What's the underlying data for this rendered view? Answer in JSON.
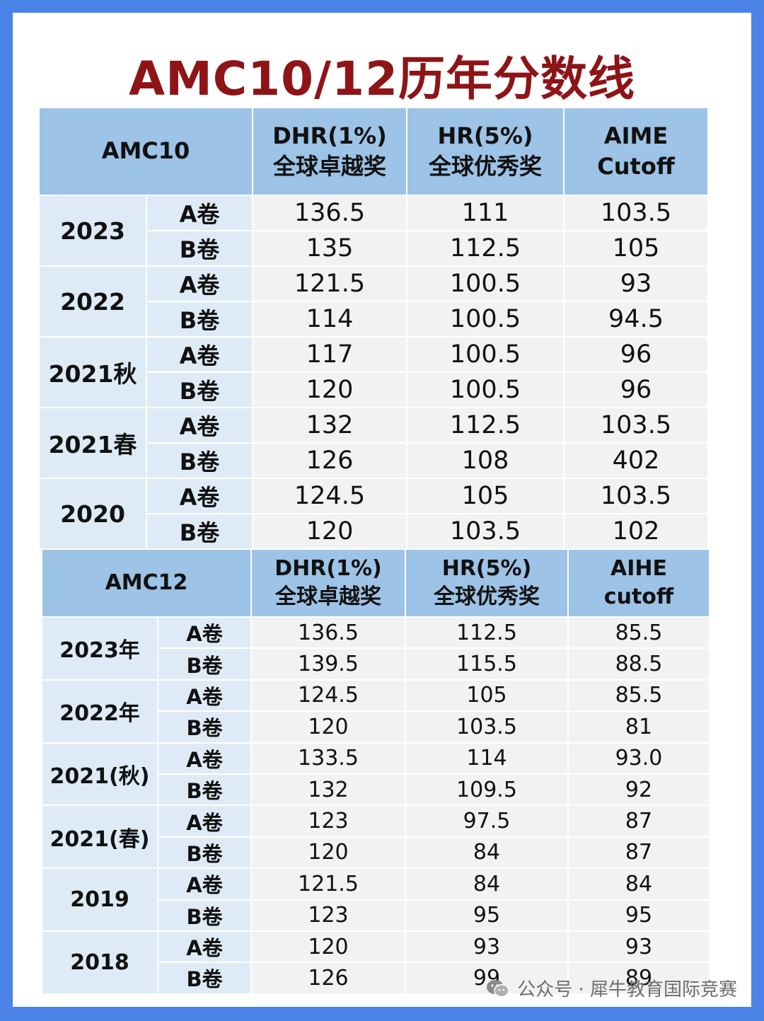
{
  "title": "AMC10/12历年分数线",
  "amc10": {
    "headers": [
      {
        "lines": [
          "AMC10"
        ]
      },
      {
        "lines": [
          "DHR(1%)",
          "全球卓越奖"
        ]
      },
      {
        "lines": [
          "HR(5%)",
          "全球优秀奖"
        ]
      },
      {
        "lines": [
          "AIME",
          "Cutoff"
        ]
      }
    ],
    "groups": [
      {
        "year": "2023",
        "rows": [
          {
            "paper": "A卷",
            "dhr": "136.5",
            "hr": "111",
            "aime": "103.5"
          },
          {
            "paper": "B卷",
            "dhr": "135",
            "hr": "112.5",
            "aime": "105"
          }
        ]
      },
      {
        "year": "2022",
        "rows": [
          {
            "paper": "A卷",
            "dhr": "121.5",
            "hr": "100.5",
            "aime": "93"
          },
          {
            "paper": "B卷",
            "dhr": "114",
            "hr": "100.5",
            "aime": "94.5"
          }
        ]
      },
      {
        "year": "2021秋",
        "rows": [
          {
            "paper": "A卷",
            "dhr": "117",
            "hr": "100.5",
            "aime": "96"
          },
          {
            "paper": "B卷",
            "dhr": "120",
            "hr": "100.5",
            "aime": "96"
          }
        ]
      },
      {
        "year": "2021春",
        "rows": [
          {
            "paper": "A卷",
            "dhr": "132",
            "hr": "112.5",
            "aime": "103.5"
          },
          {
            "paper": "B卷",
            "dhr": "126",
            "hr": "108",
            "aime": "402"
          }
        ]
      },
      {
        "year": "2020",
        "rows": [
          {
            "paper": "A卷",
            "dhr": "124.5",
            "hr": "105",
            "aime": "103.5"
          },
          {
            "paper": "B卷",
            "dhr": "120",
            "hr": "103.5",
            "aime": "102"
          }
        ]
      }
    ]
  },
  "amc12": {
    "headers": [
      {
        "lines": [
          "AMC12"
        ]
      },
      {
        "lines": [
          "DHR(1%)",
          "全球卓越奖"
        ]
      },
      {
        "lines": [
          "HR(5%)",
          "全球优秀奖"
        ]
      },
      {
        "lines": [
          "AIHE",
          "cutoff"
        ]
      }
    ],
    "groups": [
      {
        "year": "2023年",
        "rows": [
          {
            "paper": "A卷",
            "dhr": "136.5",
            "hr": "112.5",
            "aime": "85.5"
          },
          {
            "paper": "B卷",
            "dhr": "139.5",
            "hr": "115.5",
            "aime": "88.5"
          }
        ]
      },
      {
        "year": "2022年",
        "rows": [
          {
            "paper": "A卷",
            "dhr": "124.5",
            "hr": "105",
            "aime": "85.5"
          },
          {
            "paper": "B卷",
            "dhr": "120",
            "hr": "103.5",
            "aime": "81"
          }
        ]
      },
      {
        "year": "2021(秋)",
        "rows": [
          {
            "paper": "A卷",
            "dhr": "133.5",
            "hr": "114",
            "aime": "93.0"
          },
          {
            "paper": "B卷",
            "dhr": "132",
            "hr": "109.5",
            "aime": "92"
          }
        ]
      },
      {
        "year": "2021(春)",
        "rows": [
          {
            "paper": "A卷",
            "dhr": "123",
            "hr": "97.5",
            "aime": "87"
          },
          {
            "paper": "B卷",
            "dhr": "120",
            "hr": "84",
            "aime": "87"
          }
        ]
      },
      {
        "year": "2019",
        "rows": [
          {
            "paper": "A卷",
            "dhr": "121.5",
            "hr": "84",
            "aime": "84"
          },
          {
            "paper": "B卷",
            "dhr": "123",
            "hr": "95",
            "aime": "95"
          }
        ]
      },
      {
        "year": "2018",
        "rows": [
          {
            "paper": "A卷",
            "dhr": "120",
            "hr": "93",
            "aime": "93"
          },
          {
            "paper": "B卷",
            "dhr": "126",
            "hr": "99",
            "aime": "89"
          }
        ]
      }
    ]
  },
  "watermark": {
    "text": "公众号 · 犀牛教育国际竞赛",
    "icon": "wechat-icon"
  },
  "colors": {
    "background": "#4b83e6",
    "title": "#8e1417",
    "header": "#9dc3e6",
    "year_cell": "#deebf7",
    "value_cell": "#f2f2f2"
  }
}
